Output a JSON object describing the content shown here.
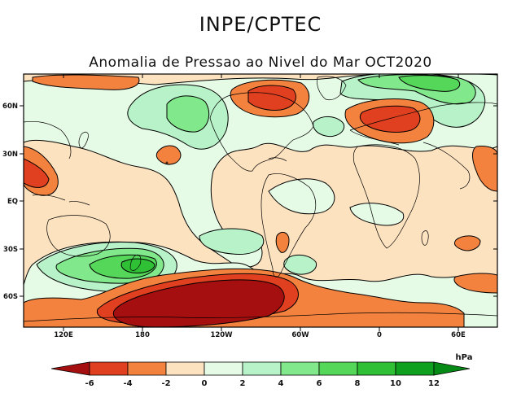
{
  "header": {
    "agency": "INPE/CPTEC",
    "title": "Anomalia de Pressao ao Nivel do Mar OCT2020"
  },
  "map": {
    "lat_labels": [
      "60N",
      "30N",
      "EQ",
      "30S",
      "60S"
    ],
    "lon_labels": [
      "120E",
      "180",
      "120W",
      "60W",
      "0",
      "60E"
    ]
  },
  "colorbar": {
    "unit": "hPa",
    "labels": [
      "-6",
      "-4",
      "-2",
      "0",
      "2",
      "4",
      "6",
      "8",
      "10",
      "12"
    ],
    "colors": {
      "lt_m6": "#a50f0f",
      "m6_m4": "#e0401f",
      "m4_m2": "#f4823f",
      "m2_0": "#fde2c0",
      "z_2": "#e6fbe6",
      "p2_4": "#b8f2c8",
      "p4_6": "#82e88c",
      "p6_8": "#55d85a",
      "p8_10": "#2fc035",
      "p10_12": "#10a020",
      "gt_12": "#058a15"
    }
  }
}
